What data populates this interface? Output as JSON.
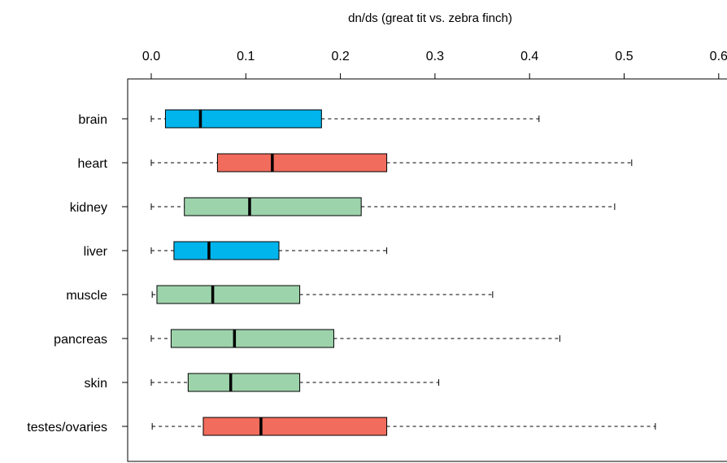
{
  "chart_data": {
    "type": "boxplot",
    "orientation": "horizontal",
    "title": "",
    "xlabel": "dn/ds (great tit vs. zebra finch)",
    "ylabel": "",
    "xlim": [
      0.0,
      0.6
    ],
    "x_ticks": [
      0.0,
      0.1,
      0.2,
      0.3,
      0.4,
      0.5,
      0.6
    ],
    "x_tick_labels": [
      "0.0",
      "0.1",
      "0.2",
      "0.3",
      "0.4",
      "0.5",
      "0.6"
    ],
    "axis_position": "top",
    "grid": false,
    "legend": null,
    "categories": [
      "brain",
      "heart",
      "kidney",
      "liver",
      "muscle",
      "pancreas",
      "skin",
      "testes/ovaries"
    ],
    "boxes": [
      {
        "category": "brain",
        "min": 0.0,
        "q1": 0.015,
        "median": 0.052,
        "q3": 0.18,
        "max": 0.41,
        "color": "#00b4ec"
      },
      {
        "category": "heart",
        "min": 0.0,
        "q1": 0.07,
        "median": 0.128,
        "q3": 0.249,
        "max": 0.508,
        "color": "#f16c5d"
      },
      {
        "category": "kidney",
        "min": 0.0,
        "q1": 0.035,
        "median": 0.104,
        "q3": 0.222,
        "max": 0.49,
        "color": "#9dd3ab"
      },
      {
        "category": "liver",
        "min": 0.0,
        "q1": 0.024,
        "median": 0.061,
        "q3": 0.135,
        "max": 0.249,
        "color": "#00b4ec"
      },
      {
        "category": "muscle",
        "min": 0.001,
        "q1": 0.006,
        "median": 0.065,
        "q3": 0.157,
        "max": 0.361,
        "color": "#9dd3ab"
      },
      {
        "category": "pancreas",
        "min": 0.0,
        "q1": 0.021,
        "median": 0.088,
        "q3": 0.193,
        "max": 0.432,
        "color": "#9dd3ab"
      },
      {
        "category": "skin",
        "min": 0.0,
        "q1": 0.039,
        "median": 0.084,
        "q3": 0.157,
        "max": 0.304,
        "color": "#9dd3ab"
      },
      {
        "category": "testes/ovaries",
        "min": 0.001,
        "q1": 0.055,
        "median": 0.116,
        "q3": 0.249,
        "max": 0.533,
        "color": "#f16c5d"
      }
    ]
  }
}
